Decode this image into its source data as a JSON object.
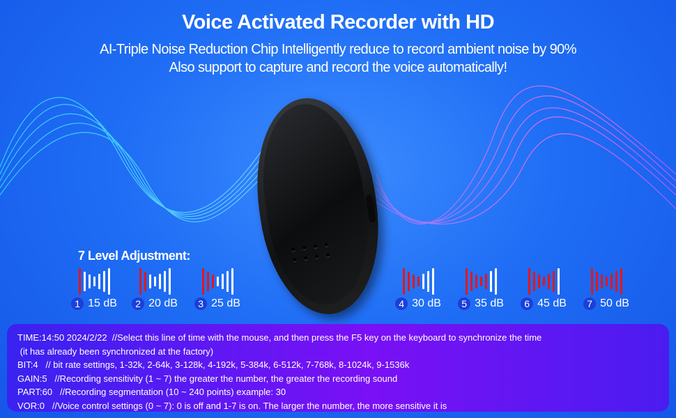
{
  "header": {
    "title": "Voice Activated Recorder with HD",
    "subtitle_line1": "AI-Triple Noise Reduction Chip Intelligently reduce to record ambient noise by 90%",
    "subtitle_line2": "Also support to capture and record the voice automatically!"
  },
  "levels": {
    "title": "7 Level Adjustment:",
    "items": [
      {
        "number": "1",
        "label": "15 dB",
        "level": 1
      },
      {
        "number": "2",
        "label": "20 dB",
        "level": 2
      },
      {
        "number": "3",
        "label": "25 dB",
        "level": 3
      },
      {
        "number": "4",
        "label": "30 dB",
        "level": 4
      },
      {
        "number": "5",
        "label": "35 dB",
        "level": 5
      },
      {
        "number": "6",
        "label": "45 dB",
        "level": 6
      },
      {
        "number": "7",
        "label": "50 dB",
        "level": 7
      }
    ],
    "active_color": "#e0181c"
  },
  "settings": {
    "lines": [
      "TIME:14:50 2024/2/22  //Select this line of time with the mouse, and then press the F5 key on the keyboard to synchronize the time",
      " (it has already been synchronized at the factory)",
      "BIT:4   // bit rate settings, 1-32k, 2-64k, 3-128k, 4-192k, 5-384k, 6-512k, 7-768k, 8-1024k, 9-1536k",
      "GAIN:5   //Recording sensitivity (1 ~ 7) the greater the number, the greater the recording sound",
      "PART:60   //Recording segmentation (10 ~ 240 points) example: 30",
      "VOR:0   //Voice control settings (0 ~ 7): 0 is off and 1-7 is on. The larger the number, the more sensitive it is"
    ]
  }
}
